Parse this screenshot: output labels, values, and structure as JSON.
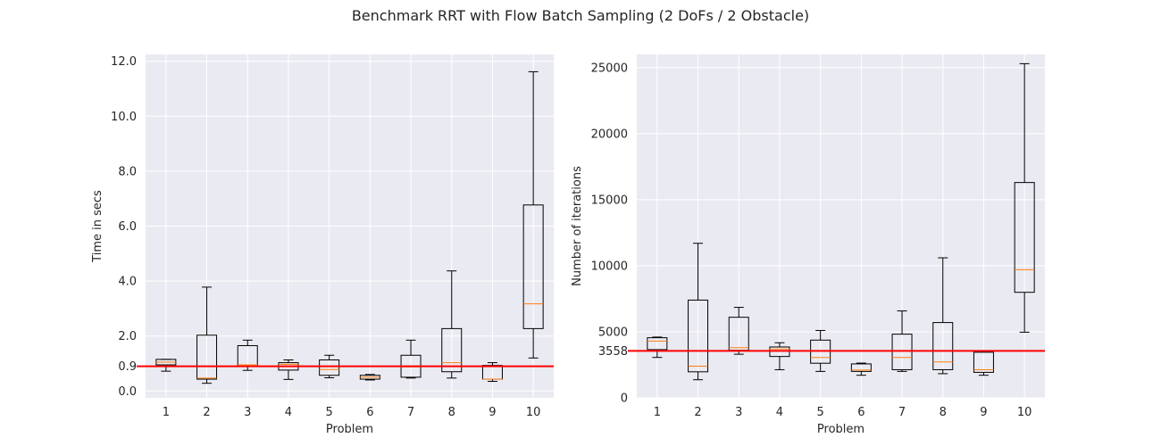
{
  "figure": {
    "title": "Benchmark RRT with Flow Batch Sampling (2 DoFs / 2 Obstacle)"
  },
  "colors": {
    "axes_bg": "#eaeaf2",
    "grid": "#ffffff",
    "box": "#000000",
    "median": "#ff7f0e",
    "reference": "#ff0000"
  },
  "chart_data": [
    {
      "type": "box",
      "xlabel": "Problem",
      "ylabel": "Time in secs",
      "categories": [
        "1",
        "2",
        "3",
        "4",
        "5",
        "6",
        "7",
        "8",
        "9",
        "10"
      ],
      "ylim": [
        -0.25,
        12.25
      ],
      "yticks": [
        0.0,
        0.9,
        2.0,
        4.0,
        6.0,
        8.0,
        10.0,
        12.0
      ],
      "ytick_labels": [
        "0.0",
        "0.9",
        "2.0",
        "4.0",
        "6.0",
        "8.0",
        "10.0",
        "12.0"
      ],
      "reference_line": 0.9,
      "grid": true,
      "boxes": [
        {
          "whislo": 0.72,
          "q1": 0.95,
          "med": 1.05,
          "q3": 1.15,
          "whishi": 1.15
        },
        {
          "whislo": 0.28,
          "q1": 0.43,
          "med": 0.47,
          "q3": 2.03,
          "whishi": 3.78
        },
        {
          "whislo": 0.75,
          "q1": 0.9,
          "med": 0.95,
          "q3": 1.65,
          "whishi": 1.85
        },
        {
          "whislo": 0.42,
          "q1": 0.76,
          "med": 0.97,
          "q3": 1.03,
          "whishi": 1.13
        },
        {
          "whislo": 0.48,
          "q1": 0.57,
          "med": 0.78,
          "q3": 1.13,
          "whishi": 1.3
        },
        {
          "whislo": 0.4,
          "q1": 0.43,
          "med": 0.5,
          "q3": 0.57,
          "whishi": 0.6
        },
        {
          "whislo": 0.47,
          "q1": 0.5,
          "med": 0.88,
          "q3": 1.3,
          "whishi": 1.85
        },
        {
          "whislo": 0.47,
          "q1": 0.7,
          "med": 1.03,
          "q3": 2.27,
          "whishi": 4.37
        },
        {
          "whislo": 0.35,
          "q1": 0.43,
          "med": 0.43,
          "q3": 0.93,
          "whishi": 1.03
        },
        {
          "whislo": 1.2,
          "q1": 2.27,
          "med": 3.17,
          "q3": 6.77,
          "whishi": 11.62
        }
      ]
    },
    {
      "type": "box",
      "xlabel": "Problem",
      "ylabel": "Number of iterations",
      "categories": [
        "1",
        "2",
        "3",
        "4",
        "5",
        "6",
        "7",
        "8",
        "9",
        "10"
      ],
      "ylim": [
        0,
        26000
      ],
      "yticks": [
        0,
        3558,
        5000,
        10000,
        15000,
        20000,
        25000
      ],
      "ytick_labels": [
        "0",
        "3558",
        "5000",
        "10000",
        "15000",
        "20000",
        "25000"
      ],
      "reference_line": 3558,
      "grid": true,
      "boxes": [
        {
          "whislo": 3060,
          "q1": 3650,
          "med": 4300,
          "q3": 4550,
          "whishi": 4600
        },
        {
          "whislo": 1370,
          "q1": 1970,
          "med": 2400,
          "q3": 7400,
          "whishi": 11700
        },
        {
          "whislo": 3300,
          "q1": 3600,
          "med": 3800,
          "q3": 6100,
          "whishi": 6850
        },
        {
          "whislo": 2130,
          "q1": 3130,
          "med": 3700,
          "q3": 3850,
          "whishi": 4170
        },
        {
          "whislo": 2000,
          "q1": 2620,
          "med": 3060,
          "q3": 4370,
          "whishi": 5100
        },
        {
          "whislo": 1710,
          "q1": 2000,
          "med": 2100,
          "q3": 2570,
          "whishi": 2630
        },
        {
          "whislo": 2000,
          "q1": 2130,
          "med": 3060,
          "q3": 4820,
          "whishi": 6580
        },
        {
          "whislo": 1830,
          "q1": 2130,
          "med": 2720,
          "q3": 5700,
          "whishi": 10600
        },
        {
          "whislo": 1710,
          "q1": 1930,
          "med": 2130,
          "q3": 3450,
          "whishi": 3560
        },
        {
          "whislo": 4970,
          "q1": 7990,
          "med": 9700,
          "q3": 16300,
          "whishi": 25300
        }
      ]
    }
  ]
}
